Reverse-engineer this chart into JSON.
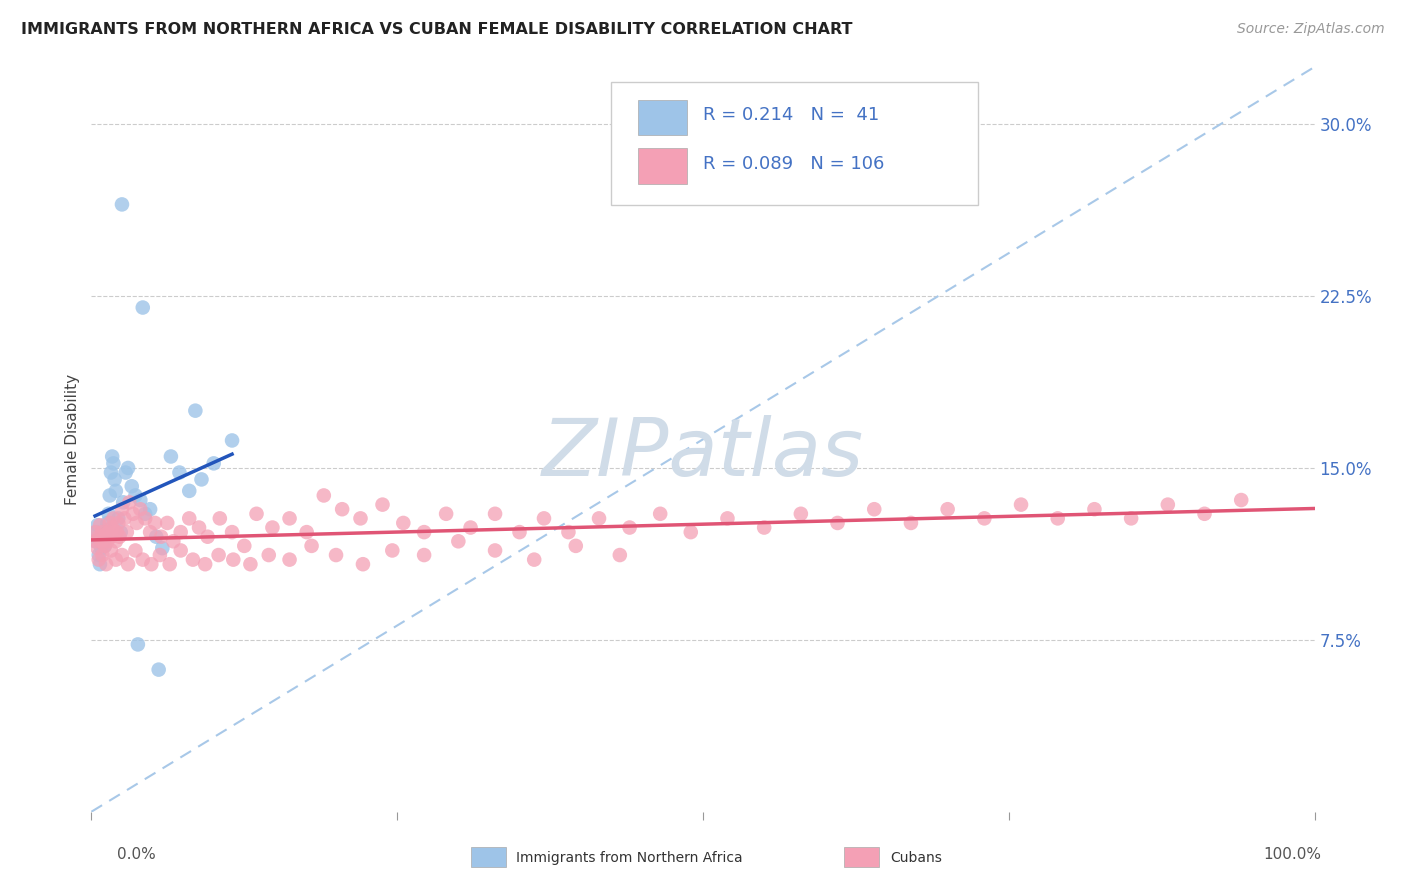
{
  "title": "IMMIGRANTS FROM NORTHERN AFRICA VS CUBAN FEMALE DISABILITY CORRELATION CHART",
  "source": "Source: ZipAtlas.com",
  "ylabel": "Female Disability",
  "xlim": [
    0.0,
    1.0
  ],
  "ylim": [
    0.0,
    0.325
  ],
  "xtick_positions": [
    0.0,
    0.25,
    0.5,
    0.75,
    1.0
  ],
  "xtick_labels_ends": [
    "0.0%",
    "100.0%"
  ],
  "ytick_labels_right": [
    "7.5%",
    "15.0%",
    "22.5%",
    "30.0%"
  ],
  "yticks_right": [
    0.075,
    0.15,
    0.225,
    0.3
  ],
  "series1_color": "#9ec4e8",
  "series2_color": "#f4a0b5",
  "series1_line_color": "#2255bb",
  "series2_line_color": "#e05575",
  "diag_line_color": "#a8c8e8",
  "legend_color": "#4472c4",
  "R1": 0.214,
  "N1": 41,
  "R2": 0.089,
  "N2": 106,
  "background_color": "#ffffff",
  "grid_color": "#cccccc",
  "watermark_color": "#d0dce8",
  "title_fontsize": 11.5,
  "source_fontsize": 10,
  "legend_fontsize": 13,
  "tick_fontsize": 11
}
